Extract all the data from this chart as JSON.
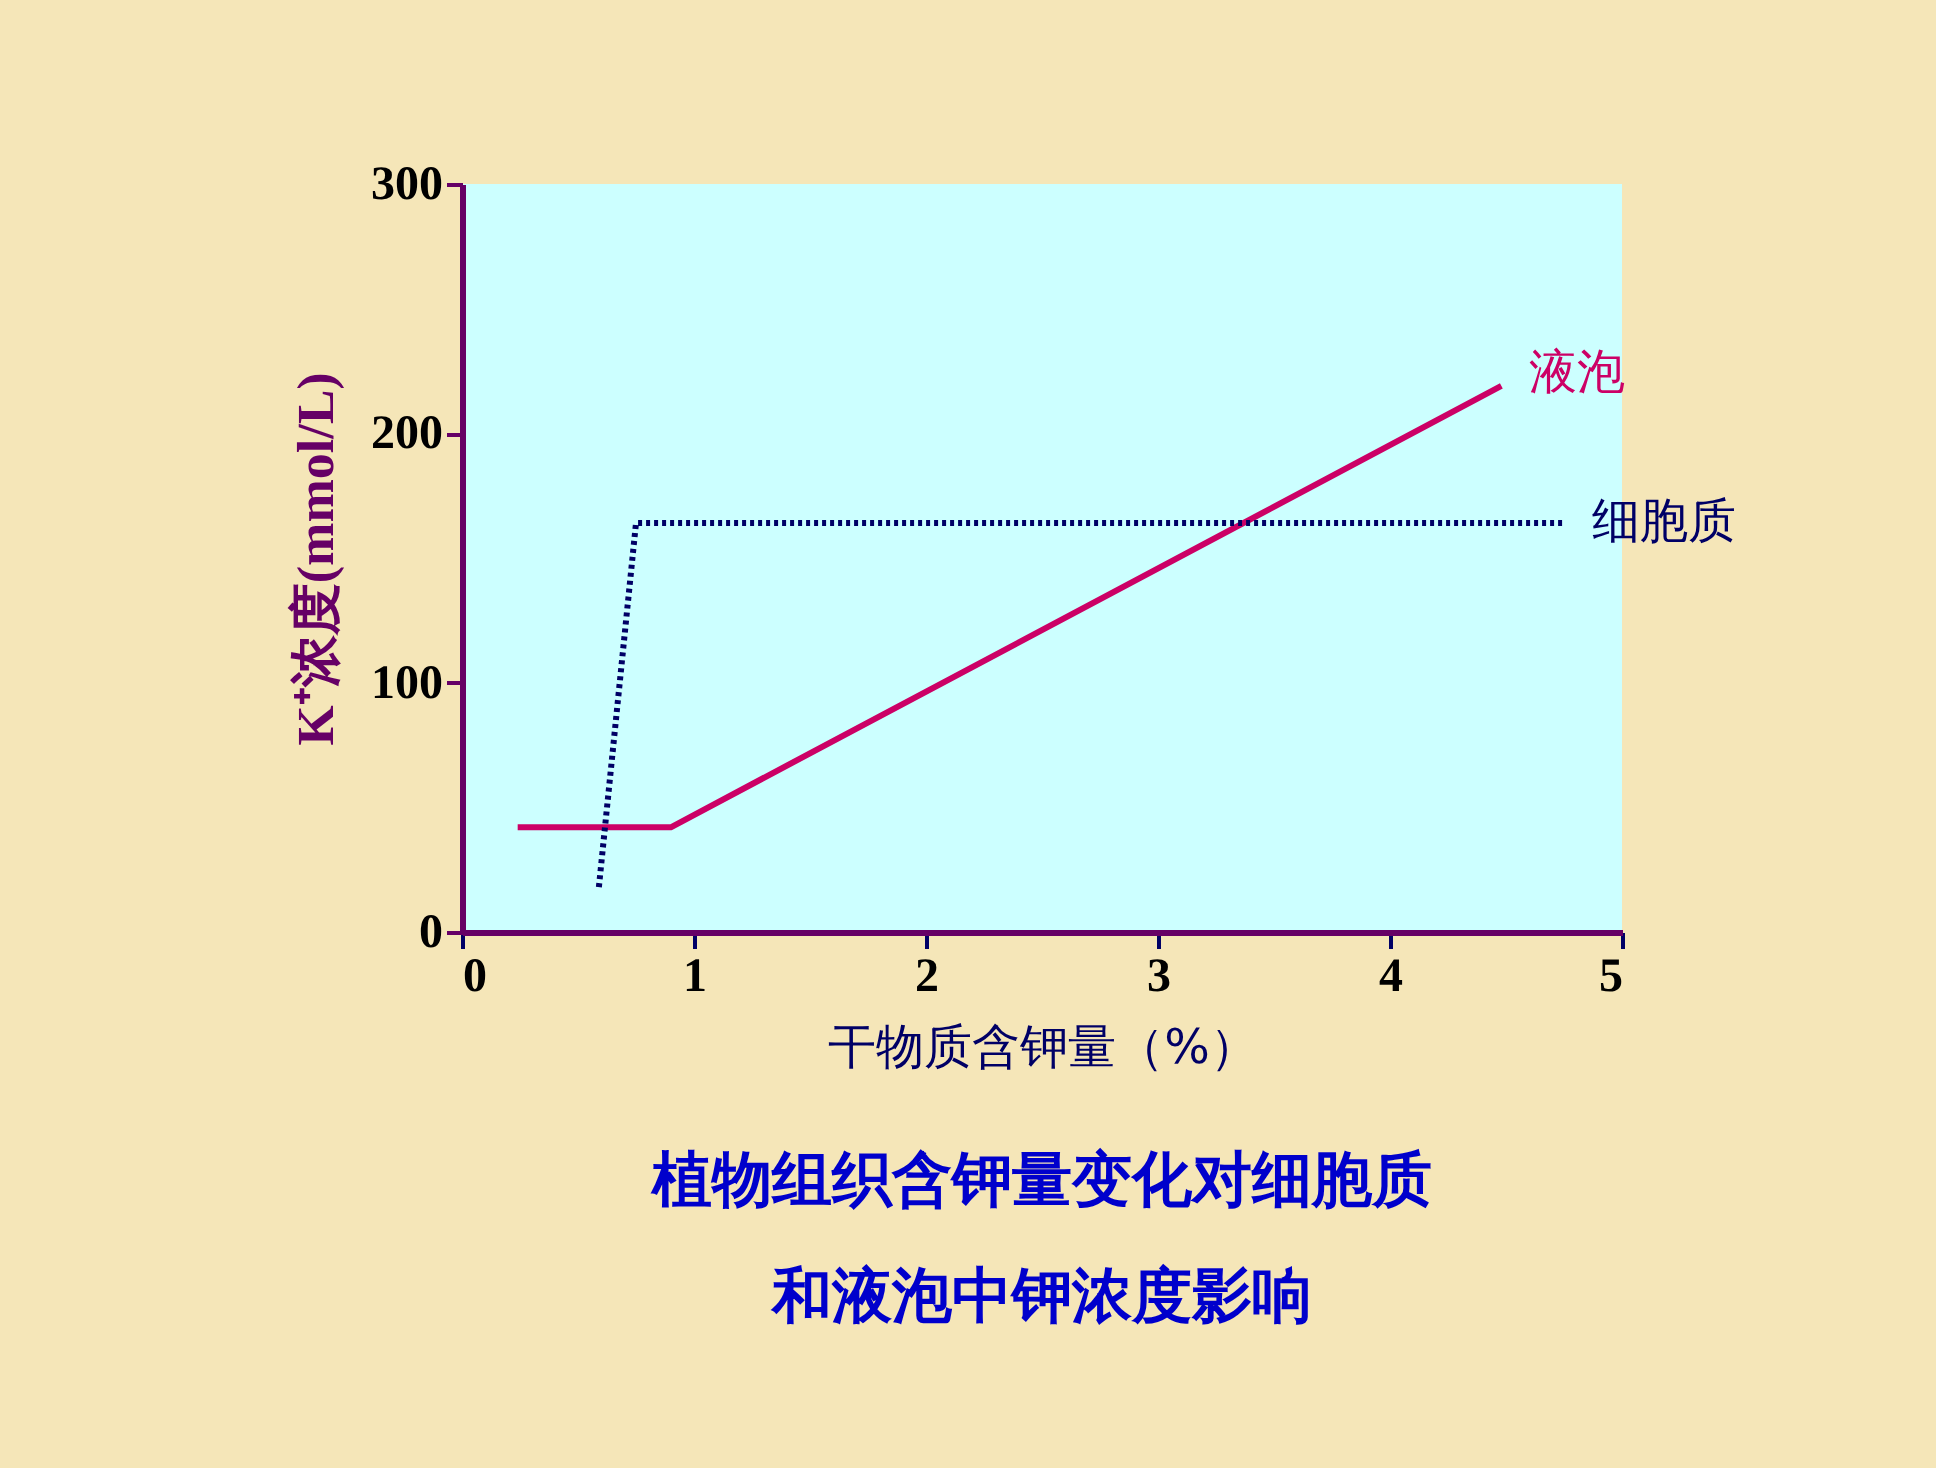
{
  "chart_data": {
    "type": "line",
    "title": "植物组织含钾量变化对细胞质和液泡中钾浓度影响",
    "xlabel": "干物质含钾量（%）",
    "ylabel": "K⁺浓度(mmol/L)",
    "xlim": [
      0,
      5
    ],
    "xticks": [
      0,
      1,
      2,
      3,
      4,
      5
    ],
    "ylim": [
      0,
      300
    ],
    "yticks": [
      0,
      100,
      200,
      300
    ],
    "grid": false,
    "marker": "none",
    "series": [
      {
        "name": "液泡",
        "color": "#cc0066",
        "line_style": "solid",
        "x": [
          0.24,
          0.9,
          4.48
        ],
        "values": [
          42,
          42,
          219
        ]
      },
      {
        "name": "细胞质",
        "color": "#000066",
        "line_style": "dotted",
        "x": [
          0.59,
          0.75,
          4.75
        ],
        "values": [
          18,
          164,
          164
        ]
      }
    ]
  }
}
